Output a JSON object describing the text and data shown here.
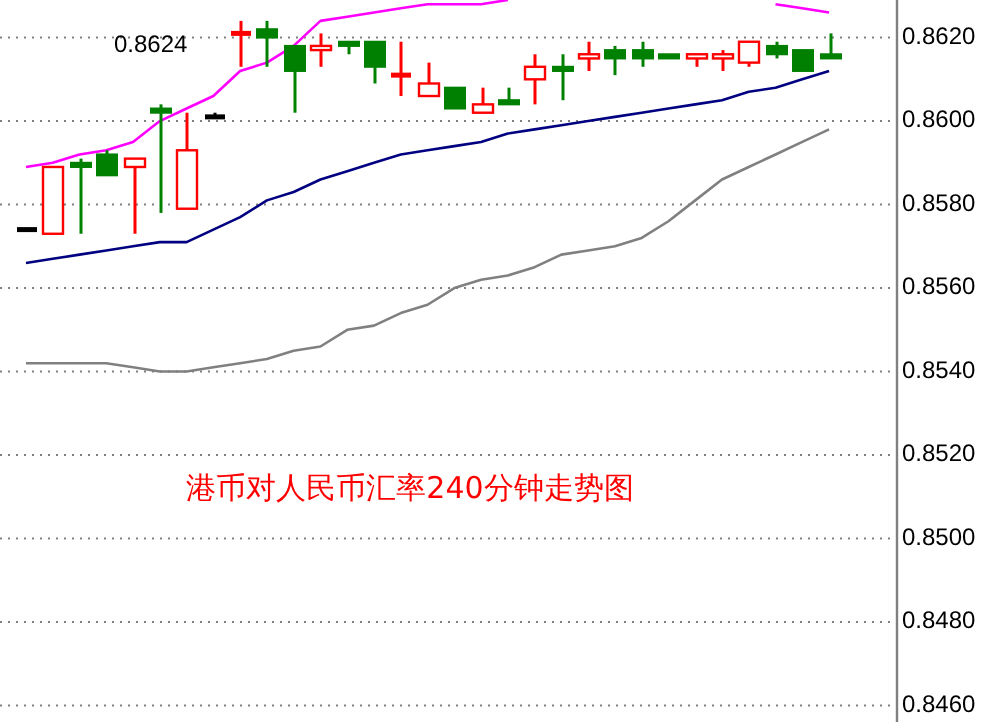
{
  "chart_data": {
    "type": "candlestick",
    "title": "港币对人民币汇率240分钟走势图",
    "categories": [
      null,
      null,
      null,
      null,
      null,
      null,
      null,
      null,
      null,
      null,
      null,
      null,
      null,
      null,
      null,
      null,
      null,
      null,
      null,
      null,
      null,
      null,
      null,
      null,
      null,
      null,
      null,
      null,
      null,
      null,
      null
    ],
    "ohlc": [
      [
        0.8574,
        0.8574,
        0.8574,
        0.8574
      ],
      [
        0.8573,
        0.8589,
        0.8573,
        0.8589
      ],
      [
        0.859,
        0.8591,
        0.8573,
        0.8589
      ],
      [
        0.8592,
        0.8593,
        0.8587,
        0.8587
      ],
      [
        0.8589,
        0.8591,
        0.8573,
        0.8591
      ],
      [
        0.8603,
        0.8604,
        0.8578,
        0.8602
      ],
      [
        0.8579,
        0.8602,
        0.8579,
        0.8593
      ],
      [
        0.8601,
        0.8602,
        0.8601,
        0.8601
      ],
      [
        0.8621,
        0.8624,
        0.8613,
        0.8621
      ],
      [
        0.8622,
        0.8624,
        0.8613,
        0.862
      ],
      [
        0.8618,
        0.8618,
        0.8602,
        0.8612
      ],
      [
        0.8617,
        0.8621,
        0.8613,
        0.8618
      ],
      [
        0.8619,
        0.8619,
        0.8616,
        0.8618
      ],
      [
        0.8619,
        0.8619,
        0.8609,
        0.8613
      ],
      [
        0.8611,
        0.8619,
        0.8606,
        0.8611
      ],
      [
        0.8606,
        0.8614,
        0.8606,
        0.8609
      ],
      [
        0.8608,
        0.8608,
        0.8603,
        0.8603
      ],
      [
        0.8602,
        0.8608,
        0.8602,
        0.8604
      ],
      [
        0.8605,
        0.8608,
        0.8604,
        0.8604
      ],
      [
        0.861,
        0.8616,
        0.8604,
        0.8613
      ],
      [
        0.8613,
        0.8616,
        0.8605,
        0.8612
      ],
      [
        0.8615,
        0.8619,
        0.8612,
        0.8616
      ],
      [
        0.8617,
        0.8618,
        0.8611,
        0.8615
      ],
      [
        0.8617,
        0.8619,
        0.8613,
        0.8615
      ],
      [
        0.8616,
        0.8616,
        0.8615,
        0.8615
      ],
      [
        0.8615,
        0.8616,
        0.8613,
        0.8616
      ],
      [
        0.8615,
        0.8617,
        0.8612,
        0.8616
      ],
      [
        0.8614,
        0.8619,
        0.8613,
        0.8619
      ],
      [
        0.8618,
        0.8619,
        0.8615,
        0.8616
      ],
      [
        0.8617,
        0.8617,
        0.8612,
        0.8612
      ],
      [
        0.8616,
        0.8621,
        0.8615,
        0.8615
      ]
    ],
    "colors": [
      "#000000",
      "#ff0000",
      "#008000",
      "#008000",
      "#ff0000",
      "#008000",
      "#ff0000",
      "#000000",
      "#ff0000",
      "#008000",
      "#008000",
      "#ff0000",
      "#008000",
      "#008000",
      "#ff0000",
      "#ff0000",
      "#008000",
      "#ff0000",
      "#008000",
      "#ff0000",
      "#008000",
      "#ff0000",
      "#008000",
      "#008000",
      "#008000",
      "#ff0000",
      "#ff0000",
      "#ff0000",
      "#008000",
      "#008000",
      "#008000"
    ],
    "series": [
      {
        "type": "line",
        "color": "#ff00ff",
        "values": [
          0.8589,
          0.859,
          0.8592,
          0.8593,
          0.8595,
          0.86,
          0.8603,
          0.8606,
          0.8612,
          0.8614,
          0.8618,
          0.8624,
          0.8625,
          0.8626,
          0.8627,
          0.8628,
          0.8628,
          0.8628,
          0.8629,
          null,
          null,
          null,
          null,
          null,
          null,
          null,
          null,
          null,
          0.8628,
          0.8627,
          0.8626
        ]
      },
      {
        "type": "line",
        "color": "#000080",
        "values": [
          0.8566,
          0.8567,
          0.8568,
          0.8569,
          0.857,
          0.8571,
          0.8571,
          0.8574,
          0.8577,
          0.8581,
          0.8583,
          0.8586,
          0.8588,
          0.859,
          0.8592,
          0.8593,
          0.8594,
          0.8595,
          0.8597,
          0.8598,
          0.8599,
          0.86,
          0.8601,
          0.8602,
          0.8603,
          0.8604,
          0.8605,
          0.8607,
          0.8608,
          0.861,
          0.8612
        ]
      },
      {
        "type": "line",
        "color": "#808080",
        "values": [
          0.8542,
          0.8542,
          0.8542,
          0.8542,
          0.8541,
          0.854,
          0.854,
          0.8541,
          0.8542,
          0.8543,
          0.8545,
          0.8546,
          0.855,
          0.8551,
          0.8554,
          0.8556,
          0.856,
          0.8562,
          0.8563,
          0.8565,
          0.8568,
          0.8569,
          0.857,
          0.8572,
          0.8576,
          0.8581,
          0.8586,
          0.8589,
          0.8592,
          0.8595,
          0.8598
        ]
      }
    ],
    "ylim": [
      0.8457,
      0.8629
    ],
    "yticks": [
      {
        "value": 0.846,
        "label": "0.8460"
      },
      {
        "value": 0.848,
        "label": "0.8480"
      },
      {
        "value": 0.85,
        "label": "0.8500"
      },
      {
        "value": 0.852,
        "label": "0.8520"
      },
      {
        "value": 0.854,
        "label": "0.8540"
      },
      {
        "value": 0.856,
        "label": "0.8560"
      },
      {
        "value": 0.858,
        "label": "0.8580"
      },
      {
        "value": 0.86,
        "label": "0.8600"
      },
      {
        "value": 0.862,
        "label": "0.8620"
      }
    ],
    "grid": "y",
    "annotations": [
      "0.8624"
    ]
  }
}
